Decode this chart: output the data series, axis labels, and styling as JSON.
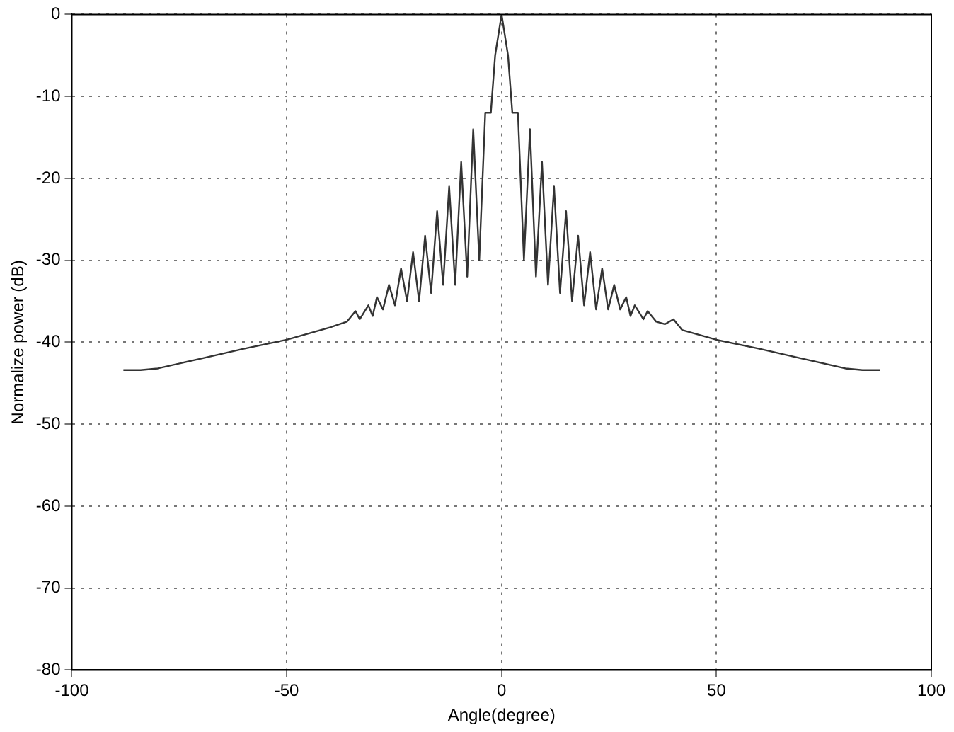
{
  "chart_data": {
    "type": "line",
    "xlabel": "Angle(degree)",
    "ylabel": "Normalize power (dB)",
    "xlim": [
      -100,
      100
    ],
    "xticks": [
      -100,
      -50,
      0,
      50,
      100
    ],
    "ylim": [
      -80,
      0
    ],
    "yticks": [
      -80,
      -70,
      -60,
      -50,
      -40,
      -30,
      -20,
      -10,
      0
    ],
    "grid": true,
    "legend": false,
    "marker": "none",
    "line_style": "solid",
    "series": [
      {
        "color": "#333333",
        "x": [
          -88,
          -84,
          -80,
          -70,
          -60,
          -50,
          -40,
          -36,
          -34,
          -33,
          -31,
          -30,
          -29,
          -27.6,
          -26.2,
          -24.8,
          -23.4,
          -22,
          -20.6,
          -19.2,
          -17.8,
          -16.4,
          -15,
          -13.6,
          -12.2,
          -10.8,
          -9.4,
          -8,
          -6.6,
          -5.2,
          -3.8,
          -2.5,
          -1.5,
          0,
          1.5,
          2.5,
          3.8,
          5.2,
          6.6,
          8,
          9.4,
          10.8,
          12.2,
          13.6,
          15,
          16.4,
          17.8,
          19.2,
          20.6,
          22,
          23.4,
          24.8,
          26.2,
          27.6,
          29,
          30,
          31,
          33,
          34,
          36,
          38,
          40,
          42,
          50,
          60,
          70,
          80,
          84,
          88
        ],
        "values": [
          -43.4,
          -43.4,
          -43.2,
          -42,
          -40.8,
          -39.7,
          -38.2,
          -37.5,
          -36.2,
          -37.2,
          -35.5,
          -36.8,
          -34.5,
          -36,
          -33,
          -35.5,
          -31,
          -35,
          -29,
          -35,
          -27,
          -34,
          -24,
          -33,
          -21,
          -33,
          -18,
          -32,
          -14,
          -30,
          -12,
          -12,
          -5,
          0,
          -5,
          -12,
          -12,
          -30,
          -14,
          -32,
          -18,
          -33,
          -21,
          -34,
          -24,
          -35,
          -27,
          -35.5,
          -29,
          -36,
          -31,
          -36,
          -33,
          -36,
          -34.5,
          -36.8,
          -35.5,
          -37.2,
          -36.2,
          -37.5,
          -37.8,
          -37.2,
          -38.5,
          -39.7,
          -40.8,
          -42,
          -43.2,
          -43.4,
          -43.4
        ]
      }
    ]
  }
}
